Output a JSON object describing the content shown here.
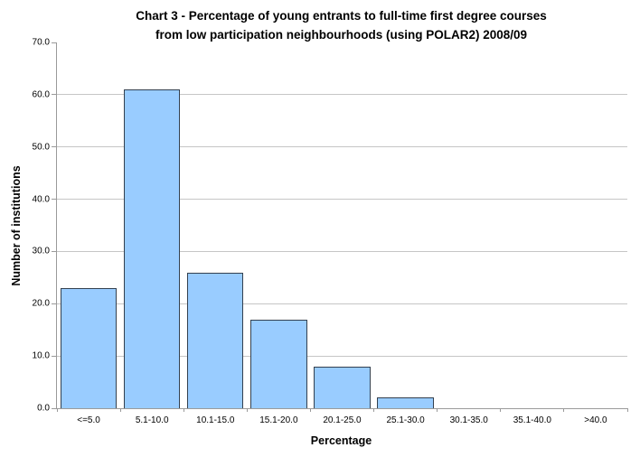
{
  "header": {
    "title_line1": "Chart 3 - Percentage of young entrants to full-time first degree courses",
    "title_line2": "from low participation neighbourhoods (using POLAR2) 2008/09"
  },
  "chart_data": {
    "type": "bar",
    "title": "Chart 3 - Percentage of young entrants to full-time first degree courses from low participation neighbourhoods (using POLAR2) 2008/09",
    "categories": [
      "<=5.0",
      "5.1-10.0",
      "10.1-15.0",
      "15.1-20.0",
      "20.1-25.0",
      "25.1-30.0",
      "30.1-35.0",
      "35.1-40.0",
      ">40.0"
    ],
    "values": [
      23,
      61,
      26,
      17,
      8,
      2,
      0,
      0,
      0
    ],
    "xlabel": "Percentage",
    "ylabel": "Number of institutions",
    "ylim": [
      0,
      70
    ],
    "ytick_step": 10,
    "ytick_labels": [
      "0.0",
      "10.0",
      "20.0",
      "30.0",
      "40.0",
      "50.0",
      "60.0",
      "70.0"
    ],
    "grid": "horizontal",
    "legend": "none",
    "colors": {
      "bar_fill": "#99CCFF",
      "bar_border": "#33404F",
      "gridline": "#C6C6C6",
      "axis": "#9A9A9A",
      "text": "#000000",
      "background": "#FFFFFF"
    }
  }
}
